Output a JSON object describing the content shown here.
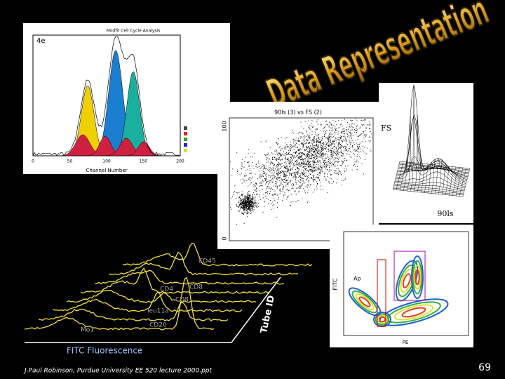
{
  "title": "Data Representation",
  "panels": {
    "histogram": {
      "label": "4e",
      "header": "Modfit Cell Cycle Analysis",
      "x_axis_label": "Channel Number",
      "x_ticks": [
        "0",
        "50",
        "100",
        "150",
        "200"
      ]
    },
    "scatter": {
      "title": "90ls (3) vs FS (2)",
      "y_top": "100",
      "y_bottom": "0"
    },
    "surface": {
      "x_axis_label": "90ls",
      "y_axis_label": "FS"
    },
    "contour": {
      "y_axis_label": "FITC",
      "x_axis_label": "PE",
      "gate_label": "Ap"
    },
    "stacked": {
      "x_axis_label": "FITC Fluorescence",
      "z_axis_label": "Tube ID",
      "traces": [
        "CD45",
        "CD8",
        "CD4",
        "CD8",
        "leu11a",
        "CD20",
        "Mo1"
      ]
    }
  },
  "footer": {
    "credit": "J.Paul Robinson, Purdue University EE 520 lecture 2000.ppt",
    "page_number": "69"
  }
}
